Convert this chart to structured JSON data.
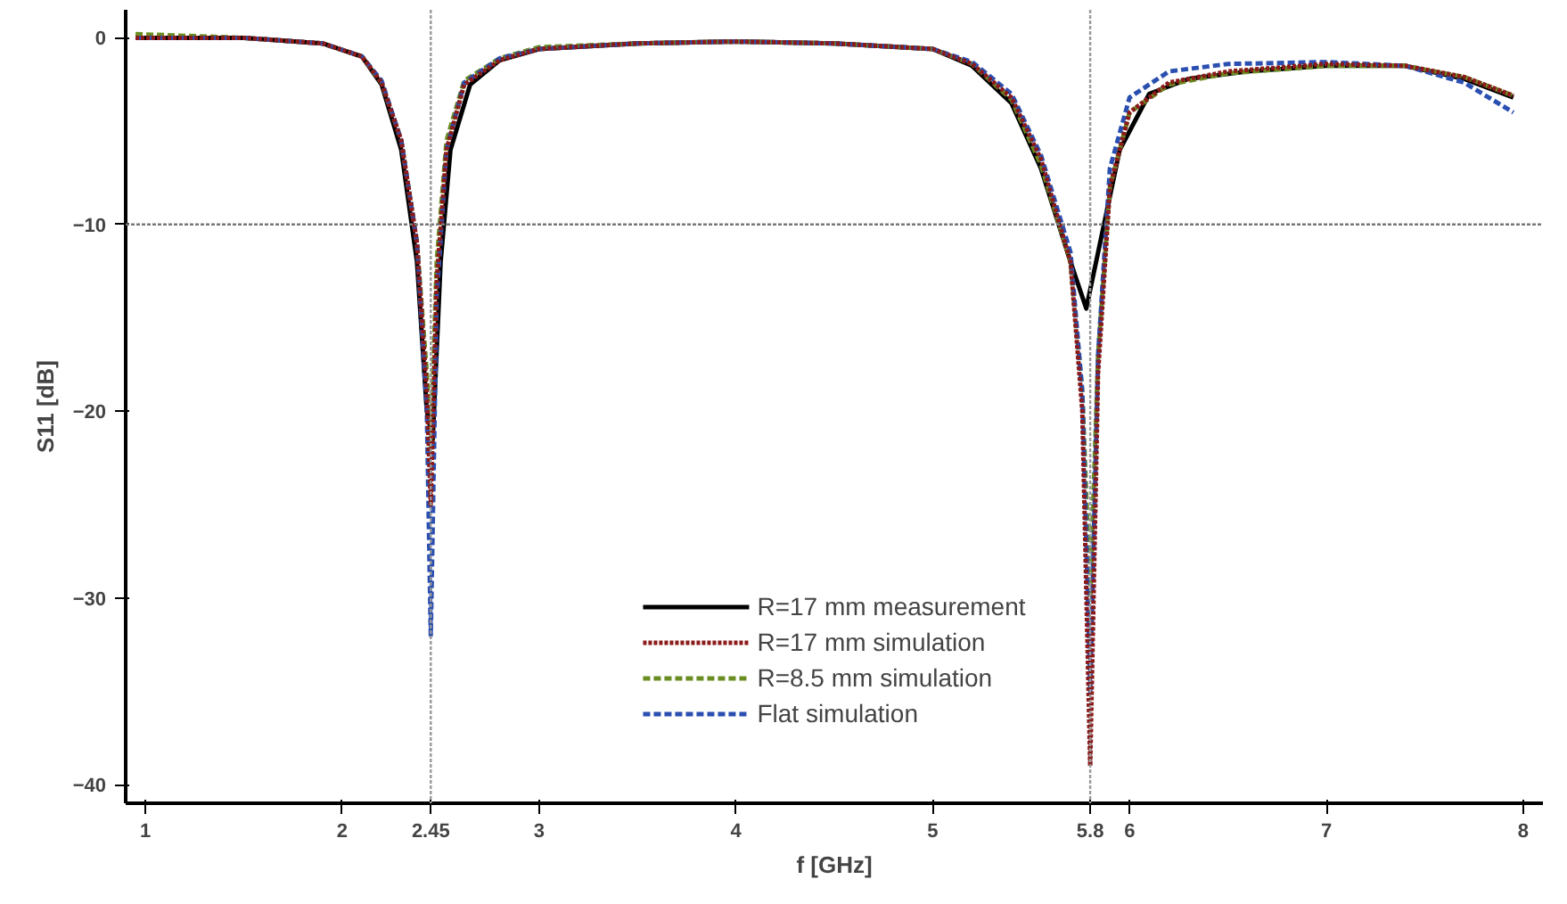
{
  "chart_data": {
    "type": "line",
    "xlabel": "f [GHz]",
    "ylabel": "S11 [dB]",
    "xlim": [
      0.9,
      8.1
    ],
    "ylim": [
      -41,
      1.5
    ],
    "xticks": [
      1,
      2,
      {
        "value": 2.45,
        "label": "2.45"
      },
      3,
      4,
      5,
      {
        "value": 5.8,
        "label": "5.8"
      },
      6,
      7,
      8
    ],
    "yticks": [
      0,
      -10,
      -20,
      -30,
      -40
    ],
    "grid": false,
    "legend": "bottom",
    "marker": "none",
    "ref_lines": [
      {
        "axis": "y",
        "value": -10,
        "line_style": "dotted",
        "color": "#777777"
      },
      {
        "axis": "x",
        "value": 2.45,
        "line_style": "dotted",
        "color": "#999999"
      },
      {
        "axis": "x",
        "value": 5.8,
        "line_style": "dotted",
        "color": "#999999"
      }
    ],
    "series": [
      {
        "name": "R=17 mm measurement",
        "color": "#000000",
        "line_style": "solid",
        "x": [
          0.95,
          1.5,
          1.9,
          2.1,
          2.2,
          2.3,
          2.38,
          2.43,
          2.46,
          2.5,
          2.55,
          2.65,
          2.8,
          3.0,
          3.5,
          4.0,
          4.5,
          5.0,
          5.2,
          5.4,
          5.55,
          5.7,
          5.78,
          5.85,
          5.95,
          6.1,
          6.3,
          6.6,
          7.0,
          7.4,
          7.7,
          7.95
        ],
        "values": [
          0,
          0,
          -0.3,
          -1,
          -2.5,
          -6,
          -12,
          -20,
          -21.5,
          -12,
          -6,
          -2.5,
          -1.2,
          -0.6,
          -0.3,
          -0.2,
          -0.3,
          -0.6,
          -1.5,
          -3.5,
          -7,
          -12,
          -14.5,
          -11,
          -6,
          -3,
          -2.2,
          -1.8,
          -1.5,
          -1.5,
          -2.2,
          -3.2
        ]
      },
      {
        "name": "R=17 mm simulation",
        "color": "#8b1a1a",
        "line_style": "dotted",
        "x": [
          0.95,
          1.5,
          1.9,
          2.1,
          2.2,
          2.3,
          2.38,
          2.43,
          2.45,
          2.48,
          2.53,
          2.62,
          2.8,
          3.0,
          3.5,
          4.0,
          4.5,
          5.0,
          5.2,
          5.4,
          5.55,
          5.7,
          5.76,
          5.8,
          5.84,
          5.9,
          6.0,
          6.2,
          6.5,
          7.0,
          7.4,
          7.7,
          7.95
        ],
        "values": [
          0,
          0,
          -0.3,
          -1,
          -2.4,
          -5.5,
          -11,
          -19,
          -25,
          -13,
          -6,
          -2.5,
          -1.2,
          -0.6,
          -0.3,
          -0.2,
          -0.3,
          -0.6,
          -1.4,
          -3.2,
          -6.5,
          -12,
          -20,
          -39,
          -18,
          -8,
          -4,
          -2.4,
          -1.8,
          -1.4,
          -1.5,
          -2.1,
          -3.1
        ]
      },
      {
        "name": "R=8.5 mm simulation",
        "color": "#6b8e23",
        "line_style": "dashed",
        "x": [
          0.95,
          1.5,
          1.9,
          2.1,
          2.2,
          2.3,
          2.38,
          2.43,
          2.45,
          2.48,
          2.53,
          2.62,
          2.8,
          3.0,
          3.5,
          4.0,
          4.5,
          5.0,
          5.2,
          5.4,
          5.55,
          5.7,
          5.76,
          5.8,
          5.84,
          5.9,
          6.0,
          6.2,
          6.5,
          7.0,
          7.4,
          7.7,
          7.95
        ],
        "values": [
          0.2,
          0,
          -0.3,
          -1,
          -2.4,
          -5.5,
          -11,
          -18,
          -22,
          -12,
          -5.5,
          -2.3,
          -1.1,
          -0.5,
          -0.3,
          -0.2,
          -0.3,
          -0.6,
          -1.4,
          -3.3,
          -6.8,
          -12,
          -19,
          -30,
          -17,
          -8,
          -4,
          -2.5,
          -1.9,
          -1.5,
          -1.5,
          -2.1,
          -3.1
        ]
      },
      {
        "name": "Flat simulation",
        "color": "#2a4fb0",
        "line_style": "dashed",
        "x": [
          0.95,
          1.5,
          1.9,
          2.1,
          2.2,
          2.3,
          2.38,
          2.43,
          2.45,
          2.48,
          2.53,
          2.62,
          2.8,
          3.0,
          3.5,
          4.0,
          4.5,
          5.0,
          5.2,
          5.4,
          5.55,
          5.7,
          5.76,
          5.8,
          5.84,
          5.9,
          6.0,
          6.2,
          6.5,
          7.0,
          7.4,
          7.7,
          7.95
        ],
        "values": [
          0,
          0,
          -0.3,
          -1,
          -2.3,
          -5.5,
          -11,
          -20,
          -32,
          -14,
          -6,
          -2.4,
          -1.1,
          -0.6,
          -0.3,
          -0.2,
          -0.3,
          -0.6,
          -1.3,
          -3,
          -6.3,
          -11.5,
          -19,
          -35,
          -17,
          -7,
          -3.2,
          -1.8,
          -1.4,
          -1.3,
          -1.5,
          -2.4,
          -4
        ]
      }
    ]
  }
}
